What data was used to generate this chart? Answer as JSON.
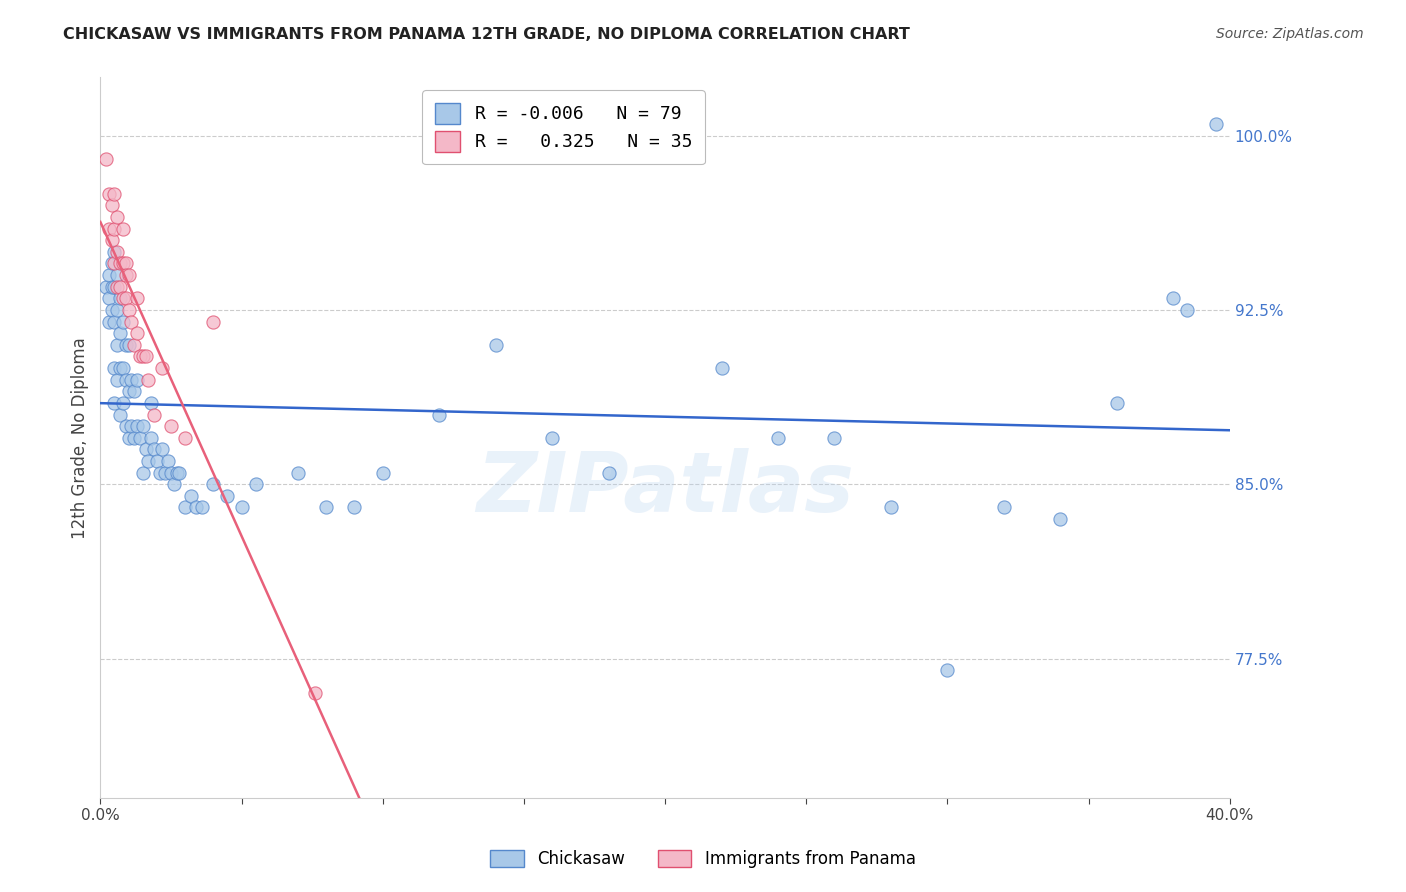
{
  "title": "CHICKASAW VS IMMIGRANTS FROM PANAMA 12TH GRADE, NO DIPLOMA CORRELATION CHART",
  "source": "Source: ZipAtlas.com",
  "ylabel_left": "12th Grade, No Diploma",
  "xlim": [
    0.0,
    0.4
  ],
  "ylim": [
    0.715,
    1.025
  ],
  "x_ticks": [
    0.0,
    0.05,
    0.1,
    0.15,
    0.2,
    0.25,
    0.3,
    0.35,
    0.4
  ],
  "x_tick_labels": [
    "0.0%",
    "",
    "",
    "",
    "",
    "",
    "",
    "",
    "40.0%"
  ],
  "y_ticks_right": [
    1.0,
    0.925,
    0.85,
    0.775
  ],
  "y_tick_labels_right": [
    "100.0%",
    "92.5%",
    "85.0%",
    "77.5%"
  ],
  "legend_label1": "Chickasaw",
  "legend_label2": "Immigrants from Panama",
  "color_blue": "#a8c8e8",
  "color_pink": "#f4b8c8",
  "color_blue_line": "#3366cc",
  "color_pink_line": "#e8607a",
  "color_blue_edge": "#5588cc",
  "color_pink_edge": "#e05070",
  "watermark": "ZIPatlas",
  "blue_R": -0.006,
  "blue_N": 79,
  "pink_R": 0.325,
  "pink_N": 35,
  "blue_scatter_x": [
    0.002,
    0.003,
    0.003,
    0.003,
    0.004,
    0.004,
    0.004,
    0.005,
    0.005,
    0.005,
    0.005,
    0.005,
    0.006,
    0.006,
    0.006,
    0.006,
    0.007,
    0.007,
    0.007,
    0.007,
    0.008,
    0.008,
    0.008,
    0.009,
    0.009,
    0.009,
    0.01,
    0.01,
    0.01,
    0.011,
    0.011,
    0.012,
    0.012,
    0.013,
    0.013,
    0.014,
    0.015,
    0.015,
    0.016,
    0.017,
    0.018,
    0.018,
    0.019,
    0.02,
    0.021,
    0.022,
    0.023,
    0.024,
    0.025,
    0.026,
    0.027,
    0.028,
    0.03,
    0.032,
    0.034,
    0.036,
    0.04,
    0.045,
    0.05,
    0.055,
    0.07,
    0.08,
    0.09,
    0.1,
    0.12,
    0.14,
    0.16,
    0.18,
    0.22,
    0.24,
    0.26,
    0.28,
    0.3,
    0.32,
    0.34,
    0.36,
    0.38,
    0.385,
    0.395
  ],
  "blue_scatter_y": [
    0.935,
    0.93,
    0.94,
    0.92,
    0.925,
    0.935,
    0.945,
    0.885,
    0.9,
    0.92,
    0.935,
    0.95,
    0.895,
    0.91,
    0.925,
    0.94,
    0.88,
    0.9,
    0.915,
    0.93,
    0.885,
    0.9,
    0.92,
    0.875,
    0.895,
    0.91,
    0.87,
    0.89,
    0.91,
    0.875,
    0.895,
    0.87,
    0.89,
    0.875,
    0.895,
    0.87,
    0.855,
    0.875,
    0.865,
    0.86,
    0.87,
    0.885,
    0.865,
    0.86,
    0.855,
    0.865,
    0.855,
    0.86,
    0.855,
    0.85,
    0.855,
    0.855,
    0.84,
    0.845,
    0.84,
    0.84,
    0.85,
    0.845,
    0.84,
    0.85,
    0.855,
    0.84,
    0.84,
    0.855,
    0.88,
    0.91,
    0.87,
    0.855,
    0.9,
    0.87,
    0.87,
    0.84,
    0.77,
    0.84,
    0.835,
    0.885,
    0.93,
    0.925,
    1.005
  ],
  "pink_scatter_x": [
    0.002,
    0.003,
    0.003,
    0.004,
    0.004,
    0.005,
    0.005,
    0.005,
    0.006,
    0.006,
    0.006,
    0.007,
    0.007,
    0.008,
    0.008,
    0.008,
    0.009,
    0.009,
    0.009,
    0.01,
    0.01,
    0.011,
    0.012,
    0.013,
    0.013,
    0.014,
    0.015,
    0.016,
    0.017,
    0.019,
    0.022,
    0.025,
    0.03,
    0.04,
    0.076
  ],
  "pink_scatter_y": [
    0.99,
    0.975,
    0.96,
    0.97,
    0.955,
    0.975,
    0.96,
    0.945,
    0.95,
    0.935,
    0.965,
    0.945,
    0.935,
    0.96,
    0.945,
    0.93,
    0.945,
    0.93,
    0.94,
    0.925,
    0.94,
    0.92,
    0.91,
    0.915,
    0.93,
    0.905,
    0.905,
    0.905,
    0.895,
    0.88,
    0.9,
    0.875,
    0.87,
    0.92,
    0.76
  ]
}
